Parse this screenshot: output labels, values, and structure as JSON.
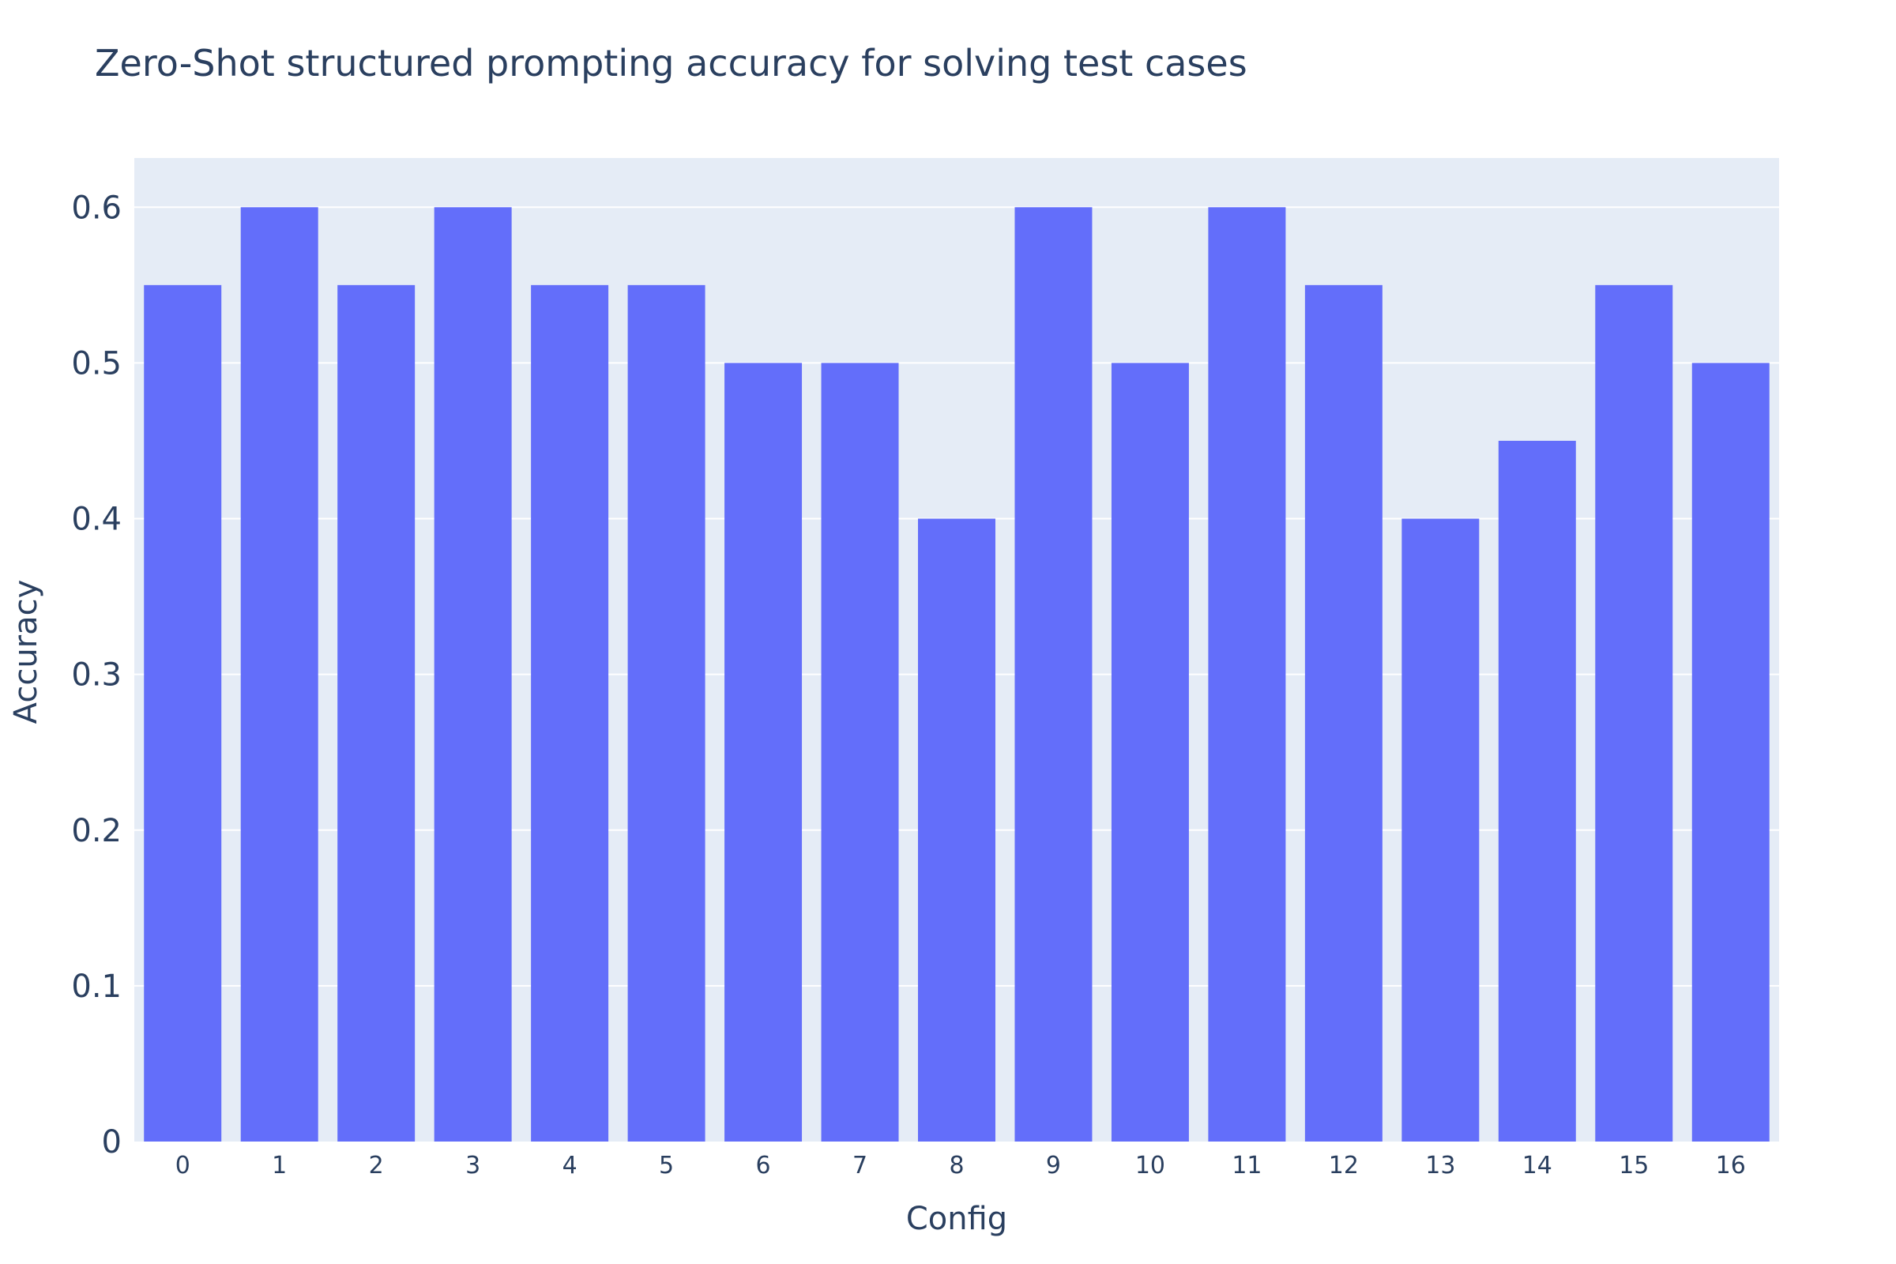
{
  "chart_data": {
    "type": "bar",
    "title": "Zero-Shot structured prompting accuracy for solving test cases",
    "xlabel": "Config",
    "ylabel": "Accuracy",
    "categories": [
      "0",
      "1",
      "2",
      "3",
      "4",
      "5",
      "6",
      "7",
      "8",
      "9",
      "10",
      "11",
      "12",
      "13",
      "14",
      "15",
      "16"
    ],
    "values": [
      0.55,
      0.6,
      0.55,
      0.6,
      0.55,
      0.55,
      0.5,
      0.5,
      0.4,
      0.6,
      0.5,
      0.6,
      0.55,
      0.4,
      0.45,
      0.55,
      0.5
    ],
    "ylim": [
      0,
      0.6316
    ],
    "yticks": [
      0,
      0.1,
      0.2,
      0.3,
      0.4,
      0.5,
      0.6
    ],
    "ytick_labels": [
      "0",
      "0.1",
      "0.2",
      "0.3",
      "0.4",
      "0.5",
      "0.6"
    ],
    "grid": true,
    "colors": {
      "bar": "#636efa",
      "plot_background": "#e5ecf6",
      "gridline": "#ffffff",
      "text": "#2a3f5f"
    }
  }
}
